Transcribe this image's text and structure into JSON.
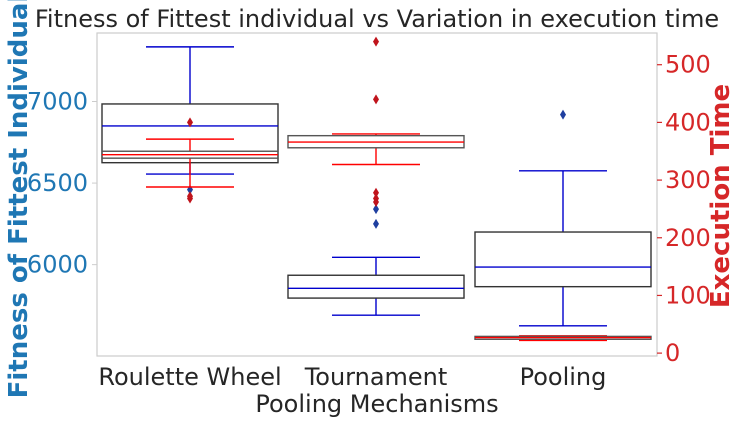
{
  "chart_data": {
    "type": "box",
    "title": "Fitness of Fittest individual vs Variation in execution time",
    "xlabel": "Pooling Mechanisms",
    "categories": [
      "Roulette Wheel",
      "Tournament",
      "Pooling"
    ],
    "y_left": {
      "label": "Fitness of Fittest Individual",
      "color": "#1f77b4",
      "ylim": [
        5440,
        7420
      ],
      "ticks": [
        6000,
        6500,
        7000
      ]
    },
    "y_right": {
      "label": "Execution Time",
      "color": "#d62728",
      "ylim": [
        -5,
        555
      ],
      "ticks": [
        0,
        100,
        200,
        300,
        400,
        500
      ]
    },
    "grid": false,
    "series": [
      {
        "axis": "left",
        "whisker_color": "#0000cd",
        "box_edge_color": "#333333",
        "boxes": [
          {
            "q1": 6625,
            "median": 6850,
            "q3": 6985,
            "whislo": 6555,
            "whishi": 7335,
            "fliers": [
              6460
            ]
          },
          {
            "q1": 5795,
            "median": 5855,
            "q3": 5935,
            "whislo": 5690,
            "whishi": 6045,
            "fliers": [
              6340,
              6250
            ]
          },
          {
            "q1": 5865,
            "median": 5985,
            "q3": 6200,
            "whislo": 5625,
            "whishi": 6575,
            "fliers": [
              6920
            ]
          }
        ]
      },
      {
        "axis": "right",
        "whisker_color": "#ff0000",
        "box_edge_color": "#555555",
        "boxes": [
          {
            "q1": 338,
            "median": 344,
            "q3": 350,
            "whislo": 288,
            "whishi": 371,
            "fliers": [
              400,
              268,
              272
            ]
          },
          {
            "q1": 356,
            "median": 366,
            "q3": 377,
            "whislo": 327,
            "whishi": 380,
            "fliers": [
              540,
              440,
              278,
              268,
              262
            ]
          },
          {
            "q1": 24,
            "median": 27,
            "q3": 29,
            "whislo": 22,
            "whishi": 30,
            "fliers": []
          }
        ]
      }
    ]
  }
}
